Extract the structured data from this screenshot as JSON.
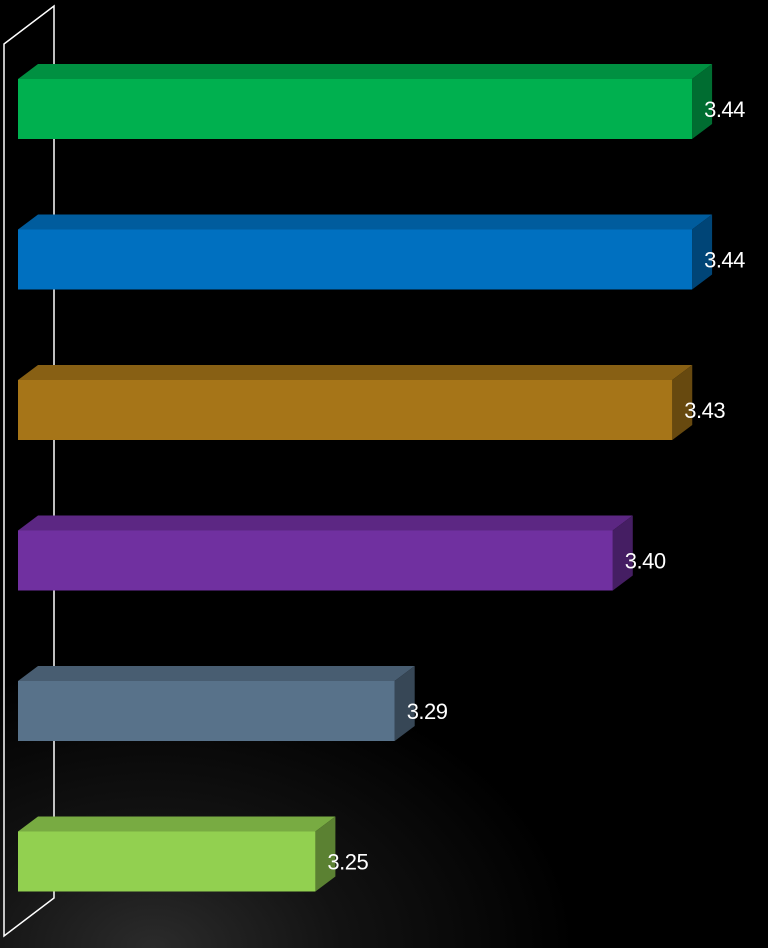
{
  "chart_data": {
    "type": "bar",
    "orientation": "horizontal",
    "style": "3d",
    "categories": [
      "",
      "",
      "",
      "",
      "",
      ""
    ],
    "values": [
      3.44,
      3.44,
      3.43,
      3.4,
      3.29,
      3.25
    ],
    "value_labels": [
      "3.44",
      "3.44",
      "3.43",
      "3.40",
      "3.29",
      "3.25"
    ],
    "colors": [
      "#00b04f",
      "#0070c0",
      "#a67518",
      "#7030a0",
      "#58728a",
      "#92d050"
    ],
    "title": "",
    "xlabel": "",
    "ylabel": "",
    "xlim": [
      3.1,
      3.445
    ],
    "grid": false,
    "legend": "none"
  }
}
